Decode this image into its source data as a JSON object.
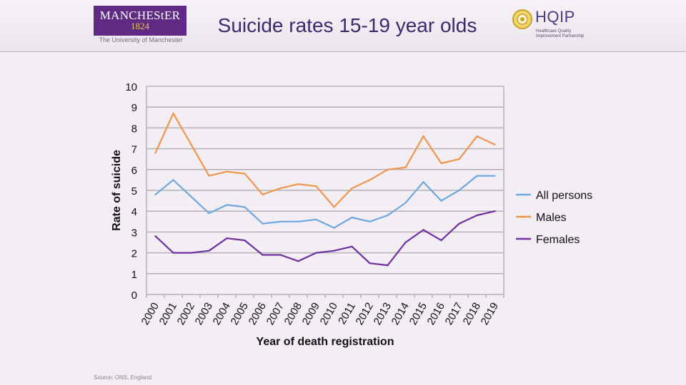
{
  "header": {
    "title": "Suicide rates 15-19 year olds",
    "uom_name": "MANCHEStER",
    "uom_year": "1824",
    "uom_subtitle": "The University of Manchester",
    "hqip_name": "HQIP",
    "hqip_tagline": "Healthcare Quality Improvement Partnership"
  },
  "footer": {
    "source": "Source: ONS, England"
  },
  "colors": {
    "all_persons": "#6fa8dc",
    "males": "#f0954d",
    "females": "#7030a0",
    "title": "#3b2a6e",
    "brand": "#5e2a84"
  },
  "chart_data": {
    "type": "line",
    "title": "",
    "xlabel": "Year of death registration",
    "ylabel": "Rate of suicide",
    "x": [
      "2000",
      "2001",
      "2002",
      "2003",
      "2004",
      "2005",
      "2006",
      "2007",
      "2008",
      "2009",
      "2010",
      "2011",
      "2012",
      "2013",
      "2014",
      "2015",
      "2016",
      "2017",
      "2018",
      "2019"
    ],
    "ylim": [
      0,
      10
    ],
    "yticks": [
      0,
      1,
      2,
      3,
      4,
      5,
      6,
      7,
      8,
      9,
      10
    ],
    "grid": true,
    "legend": "right",
    "series": [
      {
        "name": "All persons",
        "color": "#6fa8dc",
        "values": [
          4.8,
          5.5,
          4.7,
          3.9,
          4.3,
          4.2,
          3.4,
          3.5,
          3.5,
          3.6,
          3.2,
          3.7,
          3.5,
          3.8,
          4.4,
          5.4,
          4.5,
          5.0,
          5.7,
          5.7
        ]
      },
      {
        "name": "Males",
        "color": "#f0954d",
        "values": [
          6.8,
          8.7,
          7.2,
          5.7,
          5.9,
          5.8,
          4.8,
          5.1,
          5.3,
          5.2,
          4.2,
          5.1,
          5.5,
          6.0,
          6.1,
          7.6,
          6.3,
          6.5,
          7.6,
          7.2
        ]
      },
      {
        "name": "Females",
        "color": "#7030a0",
        "values": [
          2.8,
          2.0,
          2.0,
          2.1,
          2.7,
          2.6,
          1.9,
          1.9,
          1.6,
          2.0,
          2.1,
          2.3,
          1.5,
          1.4,
          2.5,
          3.1,
          2.6,
          3.4,
          3.8,
          4.0
        ]
      }
    ]
  }
}
